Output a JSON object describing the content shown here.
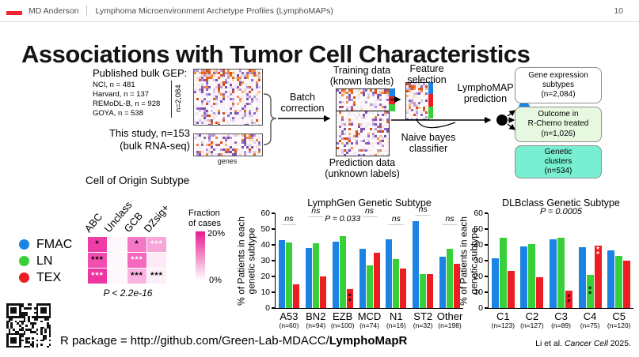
{
  "header": {
    "brand": "MD Anderson",
    "separator": "│",
    "subtitle": "Lymphoma Microenvironment Archetype Profiles (LymphoMAPs)",
    "page_number": "10",
    "accent_color": "#ef2430"
  },
  "title": "Associations with Tumor Cell Characteristics",
  "pipeline": {
    "published_heading": "Published bulk GEP:",
    "cohorts": [
      "NCI, n = 481",
      "Harvard, n = 137",
      "REMoDL-B, n = 928",
      "GOYA, n = 538"
    ],
    "total_n_label": "n=2,084",
    "this_study_label": "This study, n=153\n(bulk RNA-seq)",
    "genes_axis_label": "genes",
    "batch_correction_label": "Batch\ncorrection",
    "training_label": "Training data\n(known labels)",
    "prediction_label": "Prediction data\n(unknown labels)",
    "feature_selection_label": "Feature\nselection",
    "naive_bayes_label": "Naive bayes\nclassifier",
    "lymphomap_prediction_label": "LymphoMAP\nprediction",
    "class_colors": [
      "#1b83e3",
      "#ee1c23",
      "#38d038"
    ],
    "output_boxes": [
      {
        "label": "Gene expression\nsubtypes\n(n=2,084)",
        "bg": "#ffffff"
      },
      {
        "label": "Outcome in\nR-Chemo treated\n(n=1,026)",
        "bg": "#e6f9e0"
      },
      {
        "label": "Genetic\nclusters\n(n=534)",
        "bg": "#79efd2"
      }
    ]
  },
  "legend": {
    "items": [
      {
        "label": "FMAC",
        "color": "#1b83e3"
      },
      {
        "label": "LN",
        "color": "#38d038"
      },
      {
        "label": "TEX",
        "color": "#ee1c23"
      }
    ]
  },
  "coo": {
    "title": "Cell of Origin Subtype",
    "columns": [
      "ABC",
      "Unclass",
      "GCB",
      "DZsig+"
    ],
    "rows": [
      "FMAC",
      "LN",
      "TEX"
    ],
    "cells": [
      [
        {
          "bg": "#ee3da6",
          "stars": "*",
          "star_color": "#000000"
        },
        {
          "bg": "#fef7fb",
          "stars": "",
          "star_color": ""
        },
        {
          "bg": "#f478c5",
          "stars": "*",
          "star_color": "#000000"
        },
        {
          "bg": "#f8a5d9",
          "stars": "***",
          "star_color": "#ffffff"
        }
      ],
      [
        {
          "bg": "#f04fb0",
          "stars": "***",
          "star_color": "#000000"
        },
        {
          "bg": "#fef7fb",
          "stars": "",
          "star_color": ""
        },
        {
          "bg": "#f468bd",
          "stars": "***",
          "star_color": "#ffffff"
        },
        {
          "bg": "#fdeaf6",
          "stars": "",
          "star_color": ""
        }
      ],
      [
        {
          "bg": "#ec35a0",
          "stars": "***",
          "star_color": "#ffffff"
        },
        {
          "bg": "#fef7fb",
          "stars": "",
          "star_color": ""
        },
        {
          "bg": "#f9b3e0",
          "stars": "***",
          "star_color": "#000000"
        },
        {
          "bg": "#fceff8",
          "stars": "***",
          "star_color": "#000000"
        }
      ]
    ],
    "p_value": "P < 2.2e-16",
    "scale": {
      "label": "Fraction\nof cases",
      "max": "20%",
      "min": "0%",
      "top_color": "#e71a8f",
      "bottom_color": "#ffffff"
    }
  },
  "chart_data": [
    {
      "type": "bar",
      "title": "LymphGen Genetic Subtype",
      "ylabel": "% of Patients in each\ngenetic subtype",
      "ylim": [
        0,
        60
      ],
      "yticks": [
        0,
        10,
        20,
        30,
        40,
        50,
        60
      ],
      "grid": false,
      "categories": [
        "A53",
        "BN2",
        "EZB",
        "MCD",
        "N1",
        "ST2",
        "Other"
      ],
      "category_n": [
        "(n=60)",
        "(n=94)",
        "(n=100)",
        "(n=74)",
        "(n=16)",
        "(n=32)",
        "(n=198)"
      ],
      "series": [
        {
          "name": "FMAC",
          "color": "#1b83e3",
          "values": [
            43,
            38,
            42,
            37.5,
            43.5,
            55,
            32.5
          ]
        },
        {
          "name": "LN",
          "color": "#38d038",
          "values": [
            41.5,
            41,
            45.5,
            27,
            31,
            21.5,
            37.5
          ]
        },
        {
          "name": "TEX",
          "color": "#ee1c23",
          "values": [
            15,
            20,
            12,
            35,
            25,
            21.5,
            28
          ]
        }
      ],
      "annotations": [
        {
          "group": "A53",
          "label": "ns",
          "y": 53
        },
        {
          "group": "BN2",
          "label": "ns",
          "y": 58
        },
        {
          "group": "EZB",
          "label": "P = 0.033",
          "y": 53
        },
        {
          "group": "MCD",
          "label": "ns",
          "y": 58
        },
        {
          "group": "N1",
          "label": "ns",
          "y": 53
        },
        {
          "group": "ST2",
          "label": "ns",
          "y": 59
        },
        {
          "group": "Other",
          "label": "ns",
          "y": 53
        }
      ],
      "bar_stars": [
        {
          "group": "EZB",
          "series": "TEX",
          "stars": "**",
          "color": "#000000",
          "pos": "center"
        }
      ]
    },
    {
      "type": "bar",
      "title": "DLBclass Genetic Subtype",
      "subtitle": "P = 0.0005",
      "ylabel": "% of Patients in each\ngenetic subtype",
      "ylim": [
        0,
        60
      ],
      "yticks": [
        0,
        10,
        20,
        30,
        40,
        50,
        60
      ],
      "grid": false,
      "categories": [
        "C1",
        "C2",
        "C3",
        "C4",
        "C5"
      ],
      "category_n": [
        "(n=123)",
        "(n=127)",
        "(n=89)",
        "(n=75)",
        "(n=120)"
      ],
      "series": [
        {
          "name": "FMAC",
          "color": "#1b83e3",
          "values": [
            31.5,
            39,
            43.5,
            38.5,
            36.5
          ]
        },
        {
          "name": "LN",
          "color": "#38d038",
          "values": [
            44.5,
            40.5,
            44.5,
            21,
            33
          ]
        },
        {
          "name": "TEX",
          "color": "#ee1c23",
          "values": [
            23.5,
            19.5,
            11,
            39.5,
            30
          ]
        }
      ],
      "annotations": [],
      "bar_stars": [
        {
          "group": "C3",
          "series": "TEX",
          "stars": "**",
          "color": "#000000",
          "pos": "center"
        },
        {
          "group": "C4",
          "series": "LN",
          "stars": "**",
          "color": "#000000",
          "pos": "center"
        },
        {
          "group": "C4",
          "series": "TEX",
          "stars": "**",
          "color": "#ffffff",
          "pos": "top"
        }
      ]
    }
  ],
  "footer": {
    "r_package_prefix": "R package = http://github.com/Green-Lab-MDACC/",
    "r_package_name": "LymphoMapR",
    "citation_prefix": "Li et al. ",
    "citation_journal": "Cancer Cell",
    "citation_suffix": " 2025."
  }
}
